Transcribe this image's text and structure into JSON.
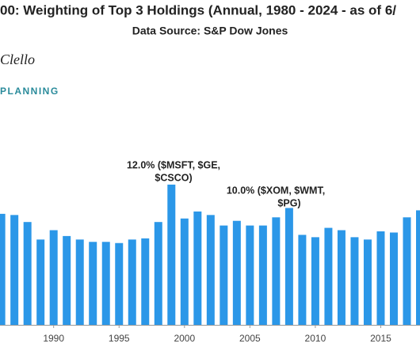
{
  "chart_data": {
    "type": "bar",
    "title": "00: Weighting of Top 3 Holdings (Annual, 1980 - 2024 - as of 6/",
    "subtitle": "Data Source: S&P Dow Jones",
    "watermark": "Clello",
    "logo": "PLANNING",
    "annotations": [
      [
        "12.0% ($MSFT, $GE,",
        "$CSCO)"
      ],
      [
        "10.0% ($XOM, $WMT,",
        "$PG)"
      ]
    ],
    "x": [
      1986,
      1987,
      1988,
      1989,
      1990,
      1991,
      1992,
      1993,
      1994,
      1995,
      1996,
      1997,
      1998,
      1999,
      2000,
      2001,
      2002,
      2003,
      2004,
      2005,
      2006,
      2007,
      2008,
      2009,
      2010,
      2011,
      2012,
      2013,
      2014,
      2015,
      2016,
      2017,
      2018
    ],
    "values": [
      9.5,
      9.4,
      8.8,
      7.3,
      8.1,
      7.6,
      7.3,
      7.1,
      7.1,
      7.0,
      7.3,
      7.4,
      8.8,
      12.0,
      9.1,
      9.7,
      9.4,
      8.5,
      8.9,
      8.5,
      8.5,
      9.2,
      10.0,
      7.7,
      7.5,
      8.3,
      8.1,
      7.5,
      7.3,
      8.0,
      7.9,
      9.2,
      9.8
    ],
    "color": "#2b97e8",
    "xlim": [
      1985.9,
      2018
    ],
    "xticks": [
      1990,
      1995,
      2000,
      2005,
      2010,
      2015
    ],
    "ylim": [
      0,
      14
    ]
  }
}
